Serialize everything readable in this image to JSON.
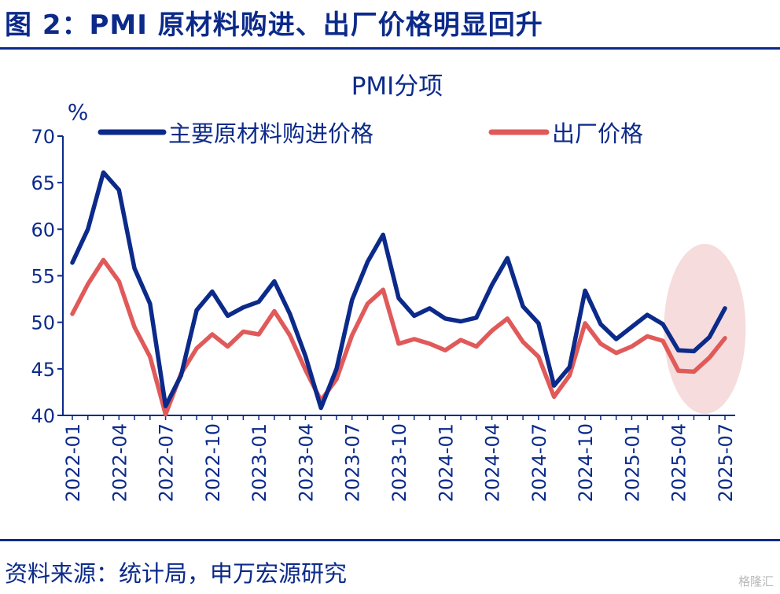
{
  "figure_title": "图 2：PMI 原材料购进、出厂价格明显回升",
  "source_text": "资料来源：统计局，申万宏源研究",
  "watermark": "格隆汇",
  "colors": {
    "series_1": "#0b2a8a",
    "series_2": "#e05a5a",
    "axis": "#0b2a8a",
    "highlight": "#f6dcdc"
  },
  "chart_data": {
    "type": "line",
    "title": "PMI分项",
    "ylabel": "%",
    "ylim": [
      40,
      70
    ],
    "yticks": [
      "70",
      "65",
      "60",
      "55",
      "50",
      "45",
      "40"
    ],
    "grid": false,
    "legend_position": "top",
    "x": [
      "2022-01",
      "2022-02",
      "2022-03",
      "2022-04",
      "2022-05",
      "2022-06",
      "2022-07",
      "2022-08",
      "2022-09",
      "2022-10",
      "2022-11",
      "2022-12",
      "2023-01",
      "2023-02",
      "2023-03",
      "2023-04",
      "2023-05",
      "2023-06",
      "2023-07",
      "2023-08",
      "2023-09",
      "2023-10",
      "2023-11",
      "2023-12",
      "2024-01",
      "2024-02",
      "2024-03",
      "2024-04",
      "2024-05",
      "2024-06",
      "2024-07",
      "2024-08",
      "2024-09",
      "2024-10",
      "2024-11",
      "2024-12",
      "2025-01",
      "2025-02",
      "2025-03",
      "2025-04",
      "2025-05",
      "2025-06",
      "2025-07"
    ],
    "xtick_labels": [
      "2022-01",
      "2022-04",
      "2022-07",
      "2022-10",
      "2023-01",
      "2023-04",
      "2023-07",
      "2023-10",
      "2024-01",
      "2024-04",
      "2024-07",
      "2024-10",
      "2025-01",
      "2025-04",
      "2025-07"
    ],
    "series": [
      {
        "name": "主要原材料购进价格",
        "values": [
          56.4,
          60.0,
          66.1,
          64.2,
          55.8,
          52.0,
          41.0,
          44.3,
          51.3,
          53.3,
          50.7,
          51.6,
          52.2,
          54.4,
          50.9,
          46.4,
          40.8,
          45.0,
          52.4,
          56.5,
          59.4,
          52.6,
          50.7,
          51.5,
          50.4,
          50.1,
          50.5,
          54.0,
          56.9,
          51.7,
          49.9,
          43.2,
          45.2,
          53.4,
          49.8,
          48.2,
          49.5,
          50.8,
          49.8,
          47.0,
          46.9,
          48.4,
          51.5
        ]
      },
      {
        "name": "出厂价格",
        "values": [
          50.9,
          54.1,
          56.7,
          54.4,
          49.5,
          46.3,
          40.1,
          44.5,
          47.2,
          48.7,
          47.4,
          49.0,
          48.7,
          51.2,
          48.6,
          44.9,
          41.6,
          43.9,
          48.6,
          52.0,
          53.5,
          47.7,
          48.2,
          47.7,
          47.0,
          48.1,
          47.4,
          49.1,
          50.4,
          47.9,
          46.3,
          42.0,
          44.3,
          49.9,
          47.7,
          46.7,
          47.4,
          48.5,
          48.0,
          44.8,
          44.7,
          46.2,
          48.3
        ]
      }
    ],
    "highlight_range": [
      "2025-04",
      "2025-07"
    ]
  }
}
